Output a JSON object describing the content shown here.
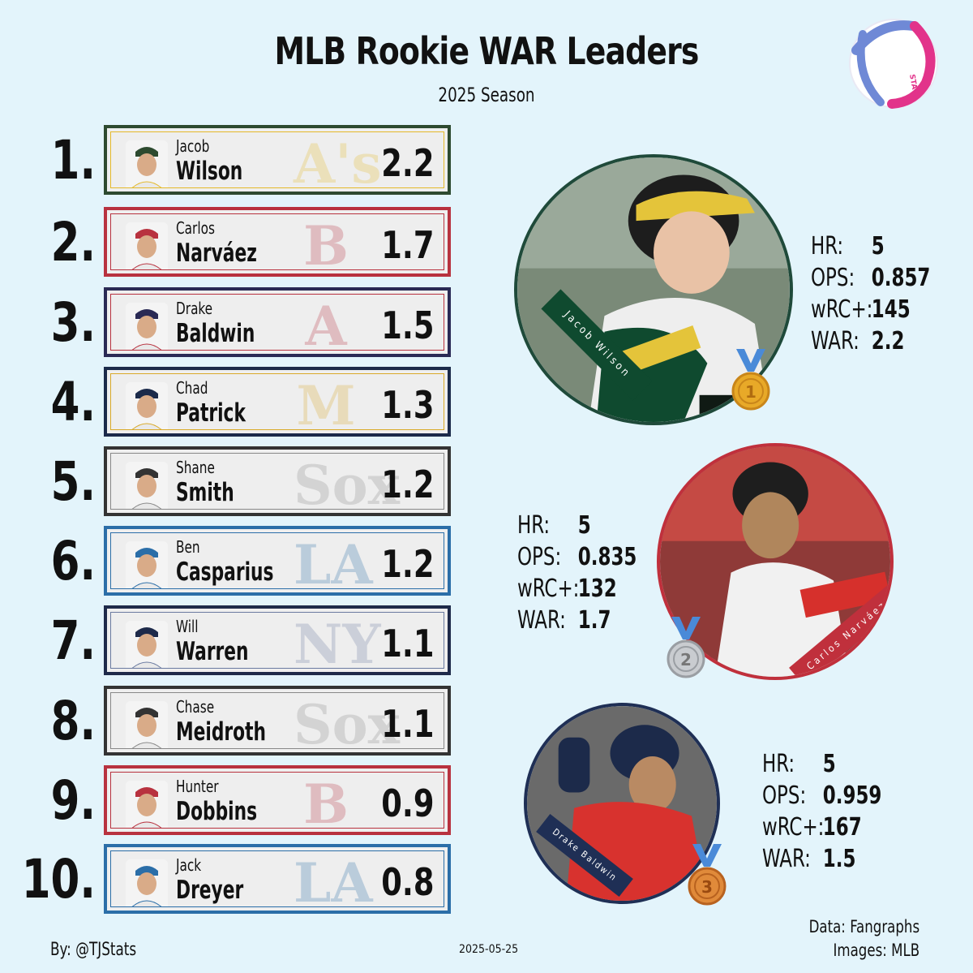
{
  "header": {
    "title": "MLB Rookie WAR Leaders",
    "subtitle": "2025 Season",
    "logo_text": "STATS"
  },
  "leaders": [
    {
      "rank": "1.",
      "first": "Jacob",
      "last": "Wilson",
      "war": "2.2",
      "team_logo": "A's",
      "border": "#2d4a2f",
      "accent": "#e4b92a"
    },
    {
      "rank": "2.",
      "first": "Carlos",
      "last": "Narváez",
      "war": "1.7",
      "team_logo": "B",
      "border": "#b8323f",
      "accent": "#b8323f"
    },
    {
      "rank": "3.",
      "first": "Drake",
      "last": "Baldwin",
      "war": "1.5",
      "team_logo": "A",
      "border": "#2a2a55",
      "accent": "#b8323f"
    },
    {
      "rank": "4.",
      "first": "Chad",
      "last": "Patrick",
      "war": "1.3",
      "team_logo": "M",
      "border": "#1b2a4a",
      "accent": "#d9a928"
    },
    {
      "rank": "5.",
      "first": "Shane",
      "last": "Smith",
      "war": "1.2",
      "team_logo": "Sox",
      "border": "#333333",
      "accent": "#888888"
    },
    {
      "rank": "6.",
      "first": "Ben",
      "last": "Casparius",
      "war": "1.2",
      "team_logo": "LA",
      "border": "#2b6ea8",
      "accent": "#2b6ea8"
    },
    {
      "rank": "7.",
      "first": "Will",
      "last": "Warren",
      "war": "1.1",
      "team_logo": "NY",
      "border": "#1e2a4a",
      "accent": "#6a7aa0"
    },
    {
      "rank": "8.",
      "first": "Chase",
      "last": "Meidroth",
      "war": "1.1",
      "team_logo": "Sox",
      "border": "#333333",
      "accent": "#888888"
    },
    {
      "rank": "9.",
      "first": "Hunter",
      "last": "Dobbins",
      "war": "0.9",
      "team_logo": "B",
      "border": "#b8323f",
      "accent": "#b8323f"
    },
    {
      "rank": "10.",
      "first": "Jack",
      "last": "Dreyer",
      "war": "0.8",
      "team_logo": "LA",
      "border": "#2b6ea8",
      "accent": "#2b6ea8"
    }
  ],
  "featured": [
    {
      "name": "Jacob Wilson",
      "medal": "1",
      "stat_labels": [
        "HR:",
        "OPS:",
        "wRC+:",
        "WAR:"
      ],
      "stat_values": [
        "5",
        "0.857",
        "145",
        "2.2"
      ],
      "ring": "#1f4a3a",
      "medal_color": "#e8a928"
    },
    {
      "name": "Carlos Narváez",
      "medal": "2",
      "stat_labels": [
        "HR:",
        "OPS:",
        "wRC+:",
        "WAR:"
      ],
      "stat_values": [
        "5",
        "0.835",
        "132",
        "1.7"
      ],
      "ring": "#c0303c",
      "medal_color": "#b9bcc0"
    },
    {
      "name": "Drake Baldwin",
      "medal": "3",
      "stat_labels": [
        "HR:",
        "OPS:",
        "wRC+:",
        "WAR:"
      ],
      "stat_values": [
        "5",
        "0.959",
        "167",
        "1.5"
      ],
      "ring": "#1f2f55",
      "medal_color": "#e08a3a"
    }
  ],
  "footer": {
    "byline": "By: @TJStats",
    "date": "2025-05-25",
    "source": "Data: Fangraphs",
    "images": "Images: MLB"
  }
}
